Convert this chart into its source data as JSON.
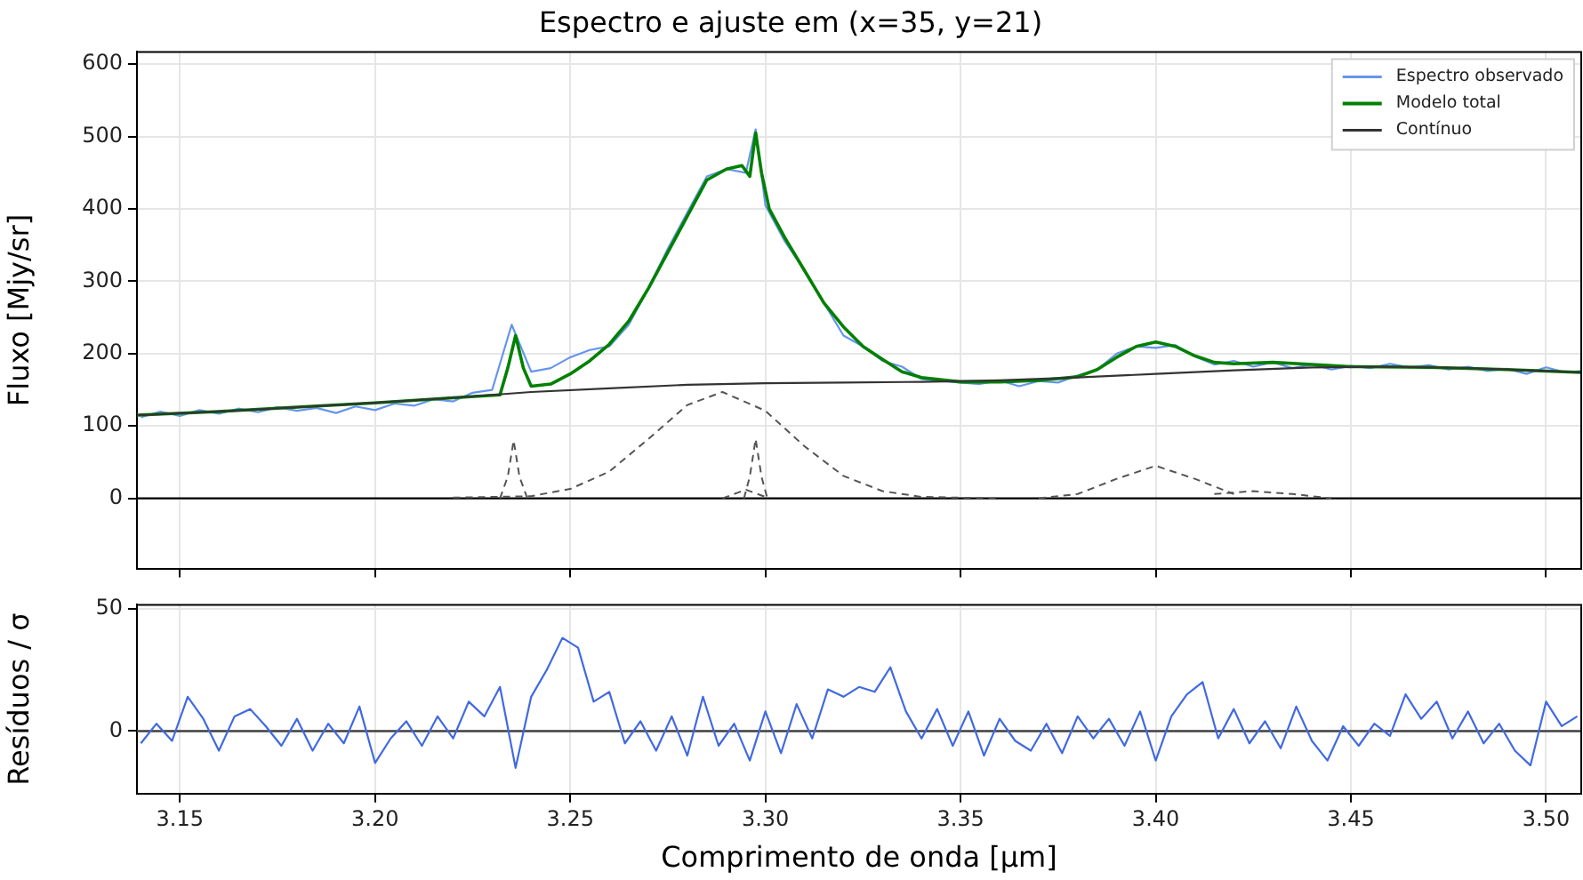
{
  "chart_data": [
    {
      "type": "line",
      "title": "Espectro e ajuste em (x=35, y=21)",
      "ylabel": "Fluxo [Mjy/sr]",
      "xlim": [
        3.139,
        3.509
      ],
      "ylim": [
        -97,
        617
      ],
      "yticks": [
        0,
        100,
        200,
        300,
        400,
        500,
        600
      ],
      "xticks": [
        {
          "value": 3.15,
          "label": null
        },
        {
          "value": 3.2,
          "label": null
        },
        {
          "value": 3.25,
          "label": null
        },
        {
          "value": 3.3,
          "label": null
        },
        {
          "value": 3.35,
          "label": null
        },
        {
          "value": 3.4,
          "label": null
        },
        {
          "value": 3.45,
          "label": null
        },
        {
          "value": 3.5,
          "label": null
        }
      ],
      "tick_labels": "y",
      "grid": true,
      "legend": "top right",
      "ref_lines": [
        {
          "axis": "y",
          "value": 0,
          "color": "#000000"
        }
      ],
      "series": [
        {
          "name": "Espectro observado",
          "color": "#6495ed",
          "x": [
            3.14,
            3.145,
            3.15,
            3.155,
            3.16,
            3.165,
            3.17,
            3.175,
            3.18,
            3.185,
            3.19,
            3.195,
            3.2,
            3.205,
            3.21,
            3.215,
            3.22,
            3.225,
            3.23,
            3.235,
            3.24,
            3.245,
            3.25,
            3.255,
            3.26,
            3.265,
            3.27,
            3.275,
            3.28,
            3.285,
            3.29,
            3.295,
            3.2975,
            3.3,
            3.305,
            3.31,
            3.315,
            3.32,
            3.325,
            3.33,
            3.335,
            3.34,
            3.345,
            3.35,
            3.355,
            3.36,
            3.365,
            3.37,
            3.375,
            3.38,
            3.385,
            3.39,
            3.395,
            3.4,
            3.405,
            3.41,
            3.415,
            3.42,
            3.425,
            3.43,
            3.435,
            3.44,
            3.445,
            3.45,
            3.455,
            3.46,
            3.465,
            3.47,
            3.475,
            3.48,
            3.485,
            3.49,
            3.495,
            3.5,
            3.505,
            3.509
          ],
          "values": [
            112,
            120,
            114,
            122,
            117,
            124,
            119,
            126,
            121,
            125,
            118,
            127,
            122,
            131,
            128,
            137,
            134,
            146,
            150,
            240,
            175,
            180,
            195,
            205,
            210,
            240,
            290,
            345,
            395,
            445,
            455,
            450,
            510,
            405,
            355,
            315,
            270,
            225,
            210,
            190,
            182,
            165,
            162,
            160,
            158,
            163,
            155,
            162,
            160,
            170,
            178,
            200,
            210,
            208,
            212,
            196,
            185,
            190,
            182,
            188,
            180,
            185,
            178,
            183,
            180,
            186,
            181,
            184,
            178,
            182,
            176,
            179,
            172,
            181,
            174,
            176
          ]
        },
        {
          "name": "Modelo total",
          "color": "#008000",
          "x": [
            3.139,
            3.16,
            3.18,
            3.2,
            3.22,
            3.232,
            3.234,
            3.236,
            3.238,
            3.24,
            3.245,
            3.25,
            3.255,
            3.26,
            3.265,
            3.27,
            3.275,
            3.28,
            3.285,
            3.29,
            3.294,
            3.296,
            3.2975,
            3.299,
            3.301,
            3.305,
            3.31,
            3.315,
            3.32,
            3.325,
            3.33,
            3.335,
            3.34,
            3.35,
            3.36,
            3.37,
            3.38,
            3.385,
            3.39,
            3.395,
            3.4,
            3.405,
            3.41,
            3.415,
            3.42,
            3.43,
            3.44,
            3.45,
            3.47,
            3.49,
            3.509
          ],
          "values": [
            115,
            120,
            126,
            132,
            139,
            143,
            180,
            225,
            180,
            155,
            158,
            172,
            190,
            213,
            245,
            290,
            340,
            390,
            440,
            455,
            460,
            445,
            505,
            450,
            400,
            360,
            315,
            270,
            237,
            210,
            192,
            175,
            167,
            161,
            161,
            163,
            168,
            178,
            195,
            210,
            216,
            210,
            197,
            188,
            186,
            188,
            185,
            182,
            181,
            178,
            174
          ]
        },
        {
          "name": "Contínuo",
          "color": "#333333",
          "x": [
            3.139,
            3.16,
            3.18,
            3.2,
            3.22,
            3.24,
            3.26,
            3.28,
            3.3,
            3.32,
            3.34,
            3.36,
            3.38,
            3.4,
            3.42,
            3.44,
            3.46,
            3.48,
            3.5,
            3.509
          ],
          "values": [
            115,
            120,
            126,
            132,
            139,
            147,
            152,
            157,
            159,
            160,
            161,
            163,
            167,
            172,
            177,
            181,
            182,
            180,
            176,
            174
          ]
        },
        {
          "color": "#555555",
          "line_style": "dashed",
          "x": [
            3.232,
            3.234,
            3.2355,
            3.237,
            3.239
          ],
          "values": [
            0,
            30,
            80,
            30,
            0
          ]
        },
        {
          "color": "#555555",
          "line_style": "dashed",
          "x": [
            3.22,
            3.24,
            3.25,
            3.26,
            3.27,
            3.28,
            3.289,
            3.3,
            3.31,
            3.32,
            3.33,
            3.34,
            3.36
          ],
          "values": [
            1,
            3,
            13,
            37,
            82,
            129,
            147,
            121,
            72,
            31,
            10,
            2,
            0
          ]
        },
        {
          "color": "#555555",
          "line_style": "dashed",
          "x": [
            3.289,
            3.293,
            3.295,
            3.297,
            3.301
          ],
          "values": [
            0,
            8,
            12,
            8,
            0
          ]
        },
        {
          "color": "#555555",
          "line_style": "dashed",
          "x": [
            3.2945,
            3.296,
            3.2975,
            3.299,
            3.3005
          ],
          "values": [
            0,
            30,
            82,
            30,
            0
          ]
        },
        {
          "color": "#555555",
          "line_style": "dashed",
          "x": [
            3.37,
            3.38,
            3.39,
            3.4,
            3.41,
            3.42
          ],
          "values": [
            0,
            6,
            27,
            45,
            27,
            6
          ]
        },
        {
          "color": "#555555",
          "line_style": "dashed",
          "x": [
            3.415,
            3.425,
            3.435,
            3.445
          ],
          "values": [
            6,
            10,
            6,
            0
          ]
        }
      ]
    },
    {
      "type": "line",
      "xlabel": "Comprimento de onda [µm]",
      "ylabel": "Resíduos / σ",
      "xlim": [
        3.139,
        3.509
      ],
      "ylim": [
        -25.5,
        51.5
      ],
      "yticks": [
        0,
        50
      ],
      "xticks": [
        3.15,
        {
          "value": 3.2,
          "label": "3.20"
        },
        3.25,
        {
          "value": 3.3,
          "label": "3.30"
        },
        3.35,
        {
          "value": 3.4,
          "label": "3.40"
        },
        3.45,
        {
          "value": 3.5,
          "label": "3.50"
        }
      ],
      "grid": true,
      "ref_lines": [
        {
          "axis": "y",
          "value": 0,
          "color": "#404040"
        }
      ],
      "series": [
        {
          "color": "#4169e1",
          "x": [
            3.14,
            3.144,
            3.148,
            3.152,
            3.156,
            3.16,
            3.164,
            3.168,
            3.172,
            3.176,
            3.18,
            3.184,
            3.188,
            3.192,
            3.196,
            3.2,
            3.204,
            3.208,
            3.212,
            3.216,
            3.22,
            3.224,
            3.228,
            3.232,
            3.236,
            3.24,
            3.244,
            3.248,
            3.252,
            3.256,
            3.26,
            3.264,
            3.268,
            3.272,
            3.276,
            3.28,
            3.284,
            3.288,
            3.292,
            3.296,
            3.3,
            3.304,
            3.308,
            3.312,
            3.316,
            3.32,
            3.324,
            3.328,
            3.332,
            3.336,
            3.34,
            3.344,
            3.348,
            3.352,
            3.356,
            3.36,
            3.364,
            3.368,
            3.372,
            3.376,
            3.38,
            3.384,
            3.388,
            3.392,
            3.396,
            3.4,
            3.404,
            3.408,
            3.412,
            3.416,
            3.42,
            3.424,
            3.428,
            3.432,
            3.436,
            3.44,
            3.444,
            3.448,
            3.452,
            3.456,
            3.46,
            3.464,
            3.468,
            3.472,
            3.476,
            3.48,
            3.484,
            3.488,
            3.492,
            3.496,
            3.5,
            3.504,
            3.508
          ],
          "values": [
            -5,
            3,
            -4,
            14,
            5,
            -8,
            6,
            9,
            2,
            -6,
            5,
            -8,
            3,
            -5,
            10,
            -13,
            -3,
            4,
            -6,
            6,
            -3,
            12,
            6,
            18,
            -15,
            14,
            25,
            38,
            34,
            12,
            16,
            -5,
            4,
            -8,
            6,
            -10,
            14,
            -6,
            3,
            -12,
            8,
            -9,
            11,
            -3,
            17,
            14,
            18,
            16,
            26,
            8,
            -3,
            9,
            -6,
            8,
            -10,
            5,
            -4,
            -8,
            3,
            -9,
            6,
            -3,
            5,
            -6,
            8,
            -12,
            6,
            15,
            20,
            -3,
            9,
            -5,
            4,
            -7,
            10,
            -4,
            -12,
            2,
            -6,
            3,
            -2,
            15,
            5,
            12,
            -3,
            8,
            -5,
            3,
            -8,
            -14,
            12,
            2,
            6
          ]
        }
      ]
    }
  ]
}
